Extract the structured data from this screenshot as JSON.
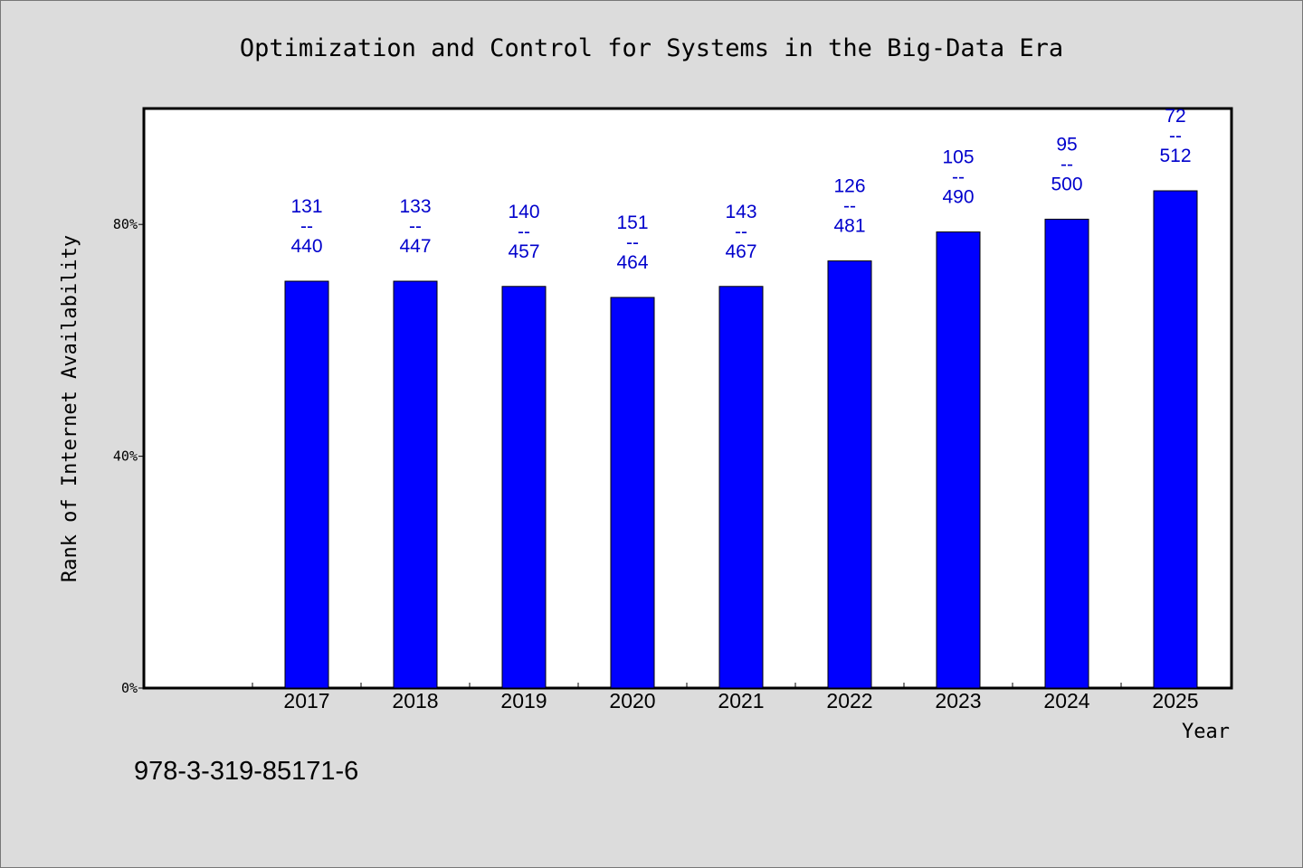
{
  "chart_data": {
    "type": "bar",
    "title": "Optimization and Control for Systems in the Big-Data Era",
    "xlabel": "Year",
    "ylabel": "Rank of Internet Availability",
    "categories": [
      "2017",
      "2018",
      "2019",
      "2020",
      "2021",
      "2022",
      "2023",
      "2024",
      "2025"
    ],
    "values": [
      70.2,
      70.2,
      69.3,
      67.4,
      69.3,
      73.7,
      78.7,
      80.9,
      85.8
    ],
    "value_unit": "%",
    "data_labels": [
      {
        "top": "131",
        "sep": "--",
        "bottom": "440"
      },
      {
        "top": "133",
        "sep": "--",
        "bottom": "447"
      },
      {
        "top": "140",
        "sep": "--",
        "bottom": "457"
      },
      {
        "top": "151",
        "sep": "--",
        "bottom": "464"
      },
      {
        "top": "143",
        "sep": "--",
        "bottom": "467"
      },
      {
        "top": "126",
        "sep": "--",
        "bottom": "481"
      },
      {
        "top": "105",
        "sep": "--",
        "bottom": "490"
      },
      {
        "top": "95",
        "sep": "--",
        "bottom": "500"
      },
      {
        "top": "72",
        "sep": "--",
        "bottom": "512"
      }
    ],
    "yticks": [
      0,
      40,
      80
    ],
    "ytick_labels": [
      "0%",
      "40%",
      "80%"
    ],
    "ylim": [
      0,
      100
    ],
    "grid": false,
    "colors": {
      "bar": "#0000ff",
      "label": "#0000cc",
      "background": "#dcdcdc",
      "plot_bg": "#ffffff"
    }
  },
  "footer": {
    "isbn": "978-3-319-85171-6"
  }
}
